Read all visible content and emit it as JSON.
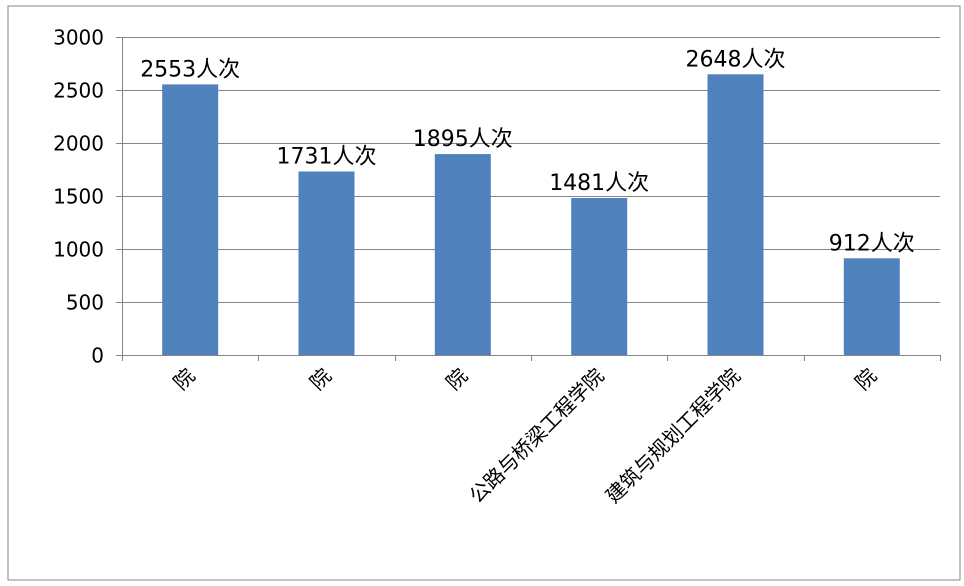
{
  "colors": {
    "bar": "#4F81BD",
    "background": "#ffffff",
    "grid": "#858585",
    "text": "#000000"
  },
  "chart_data": {
    "type": "bar",
    "title": "",
    "xlabel": "",
    "ylabel": "",
    "categories": [
      "院",
      "院",
      "院",
      "公路与桥梁工程学院",
      "建筑与规划工程学院",
      "院"
    ],
    "values": [
      2553,
      1731,
      1895,
      1481,
      2648,
      912
    ],
    "data_labels": [
      "2553人次",
      "1731人次",
      "1895人次",
      "1481人次",
      "2648人次",
      "912人次"
    ],
    "ylim": [
      0,
      3000
    ],
    "yticks": [
      0,
      500,
      1000,
      1500,
      2000,
      2500,
      3000
    ],
    "ytick_labels": [
      "0",
      "500",
      "1000",
      "1500",
      "2000",
      "2500",
      "3000"
    ],
    "grid": true,
    "legend": "none"
  }
}
